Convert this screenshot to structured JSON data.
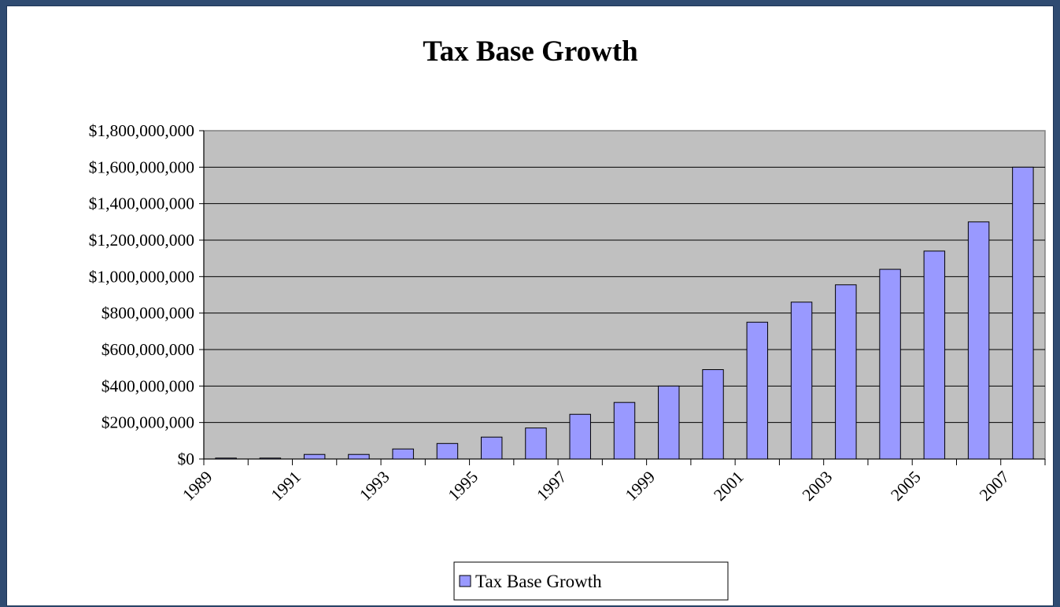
{
  "chart_data": {
    "type": "bar",
    "title": "Tax Base Growth",
    "xlabel": "",
    "ylabel": "",
    "ylim": [
      0,
      1800000000
    ],
    "y_ticks": [
      0,
      200000000,
      400000000,
      600000000,
      800000000,
      1000000000,
      1200000000,
      1400000000,
      1600000000,
      1800000000
    ],
    "y_tick_labels": [
      "$0",
      "$200,000,000",
      "$400,000,000",
      "$600,000,000",
      "$800,000,000",
      "$1,000,000,000",
      "$1,200,000,000",
      "$1,400,000,000",
      "$1,600,000,000",
      "$1,800,000,000"
    ],
    "categories": [
      "1989",
      "1990",
      "1991",
      "1992",
      "1993",
      "1994",
      "1995",
      "1996",
      "1997",
      "1998",
      "1999",
      "2000",
      "2001",
      "2002",
      "2003",
      "2004",
      "2005",
      "2006",
      "2007"
    ],
    "x_tick_labels_shown": [
      "1989",
      "1991",
      "1993",
      "1995",
      "1997",
      "1999",
      "2001",
      "2003",
      "2005",
      "2007"
    ],
    "series": [
      {
        "name": "Tax Base Growth",
        "color": "#9999ff",
        "values": [
          5000000,
          5000000,
          25000000,
          25000000,
          55000000,
          85000000,
          120000000,
          170000000,
          245000000,
          310000000,
          400000000,
          490000000,
          750000000,
          860000000,
          955000000,
          1040000000,
          1140000000,
          1300000000,
          1600000000
        ]
      }
    ],
    "grid": true,
    "plot_background": "#c0c0c0",
    "legend": "bottom-center"
  }
}
